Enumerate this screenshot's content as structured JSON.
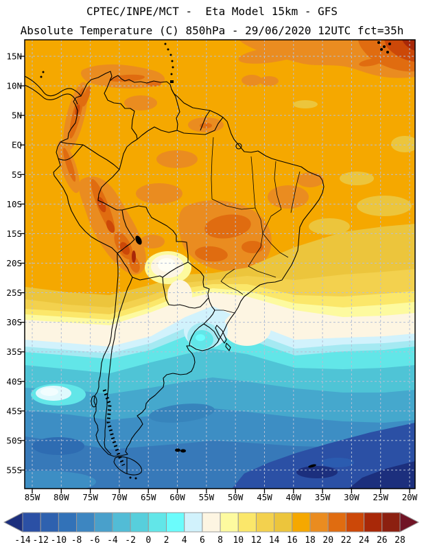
{
  "header": {
    "title": "CPTEC/INPE/MCT -  Eta Model 15km - GFS",
    "subtitle": "Absolute Temperature (C) 850hPa - 29/06/2020 12UTC fct=35h"
  },
  "map": {
    "lat_labels": [
      "15N",
      "10N",
      "5N",
      "EQ",
      "5S",
      "10S",
      "15S",
      "20S",
      "25S",
      "30S",
      "35S",
      "40S",
      "45S",
      "50S",
      "55S"
    ],
    "lon_labels": [
      "85W",
      "80W",
      "75W",
      "70W",
      "65W",
      "60W",
      "55W",
      "50W",
      "45W",
      "40W",
      "35W",
      "30W",
      "25W",
      "20W"
    ]
  },
  "colorbar": {
    "tick_labels": [
      "-14",
      "-12",
      "-10",
      "-8",
      "-6",
      "-4",
      "-2",
      "0",
      "2",
      "4",
      "6",
      "8",
      "10",
      "12",
      "14",
      "16",
      "18",
      "20",
      "22",
      "24",
      "26",
      "28"
    ],
    "cell_colors": [
      "#2b50a5",
      "#2e61af",
      "#3272b8",
      "#3d86c1",
      "#49a0cb",
      "#52bcd6",
      "#57cfdc",
      "#62e6e8",
      "#6bfcfc",
      "#d1f2fc",
      "#fdf5e2",
      "#fdfa9f",
      "#fbe76a",
      "#f3d14e",
      "#ecc53c",
      "#f5a800",
      "#ea8c20",
      "#e06c10",
      "#cc4808",
      "#a82808",
      "#8c2010"
    ],
    "left_arrow_color": "#1c2f7d",
    "right_arrow_color": "#701425"
  },
  "chart_data": {
    "type": "heatmap",
    "title": "Absolute Temperature (C) 850hPa",
    "source_line": "CPTEC/INPE/MCT -  Eta Model 15km - GFS",
    "valid": "29/06/2020 12UTC fct=35h",
    "units": "C",
    "levels": [
      -14,
      -12,
      -10,
      -8,
      -6,
      -4,
      -2,
      0,
      2,
      4,
      6,
      8,
      10,
      12,
      14,
      16,
      18,
      20,
      22,
      24,
      26,
      28
    ],
    "palette": [
      "#1c2f7d",
      "#2b50a5",
      "#2e61af",
      "#3272b8",
      "#3d86c1",
      "#49a0cb",
      "#52bcd6",
      "#57cfdc",
      "#62e6e8",
      "#6bfcfc",
      "#d1f2fc",
      "#fdf5e2",
      "#fdfa9f",
      "#fbe76a",
      "#f3d14e",
      "#ecc53c",
      "#f5a800",
      "#ea8c20",
      "#e06c10",
      "#cc4808",
      "#a82808",
      "#8c2010",
      "#701425"
    ],
    "lat_range": [
      "15N",
      "55S"
    ],
    "lon_range": [
      "85W",
      "20W"
    ],
    "grid_step_deg": 5,
    "pattern_summary": "16-26C over tropical South America with warmest air on the Andes and NE Atlantic corner; 8-14C band near 20-30S; 0-8C from 30-40S including a cold pocket over Paraguay and a cool tongue over Uruguay; -2 to -12C south of 45S, coldest in the far South Atlantic"
  }
}
